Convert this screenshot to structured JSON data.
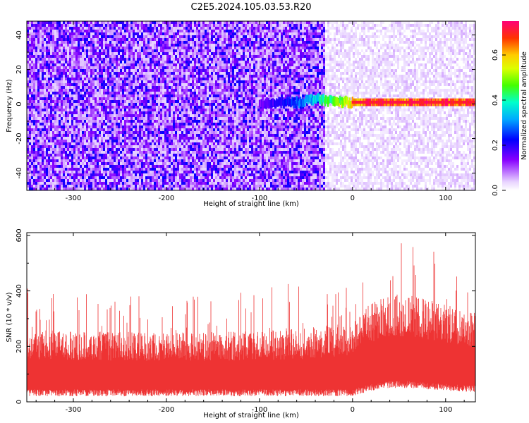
{
  "title": "C2E5.2024.105.03.53.R20",
  "chart_data": [
    {
      "type": "heatmap",
      "xlabel": "Height of straight line (km)",
      "ylabel": "Frequency (Hz)",
      "xlim": [
        -350,
        132
      ],
      "ylim": [
        -50,
        48
      ],
      "x_ticks": [
        -300,
        -200,
        -100,
        0,
        100
      ],
      "x_tick_labels": [
        "-300",
        "-200",
        "-100",
        "0",
        "100"
      ],
      "y_ticks": [
        -40,
        -20,
        0,
        20,
        40
      ],
      "y_tick_labels": [
        "-40",
        "-20",
        "0",
        "20",
        "40"
      ],
      "colorbar": {
        "label": "Normalized spectral amplitude",
        "range": [
          0,
          0.75
        ],
        "ticks": [
          0,
          0.2,
          0.4,
          0.6
        ],
        "tick_labels": [
          "0.0",
          "0.2",
          "0.4",
          "0.6"
        ]
      },
      "regions": [
        {
          "x": [
            -350,
            -30
          ],
          "amplitude_level": 0.12
        },
        {
          "x": [
            -30,
            132
          ],
          "amplitude_level": 0.03
        }
      ],
      "signal_line": {
        "x": [
          -100,
          -60,
          -40,
          -20,
          0,
          20,
          40,
          60,
          80,
          100,
          132
        ],
        "frequency": [
          0,
          1,
          3,
          1.5,
          1,
          1,
          1,
          1,
          1,
          1,
          1
        ],
        "amplitude": [
          0.15,
          0.28,
          0.38,
          0.5,
          0.62,
          0.72,
          0.72,
          0.72,
          0.72,
          0.72,
          0.72
        ]
      }
    },
    {
      "type": "line",
      "color": "#ee3333",
      "xlabel": "Height of straight line (km)",
      "ylabel": "SNR (10 * v/v)",
      "xlim": [
        -350,
        132
      ],
      "ylim": [
        0,
        610
      ],
      "x_ticks": [
        -300,
        -200,
        -100,
        0,
        100
      ],
      "x_tick_labels": [
        "-300",
        "-200",
        "-100",
        "0",
        "100"
      ],
      "y_ticks": [
        0,
        200,
        400,
        600
      ],
      "y_tick_labels": [
        "0",
        "200",
        "400",
        "600"
      ],
      "envelope": {
        "x": [
          -350,
          -300,
          -200,
          -100,
          -50,
          0,
          20,
          40,
          60,
          80,
          100,
          132
        ],
        "low": [
          20,
          20,
          20,
          20,
          20,
          20,
          40,
          50,
          50,
          45,
          40,
          35
        ],
        "typ_max": [
          260,
          255,
          250,
          255,
          265,
          290,
          360,
          390,
          385,
          370,
          350,
          330
        ],
        "peak": [
          420,
          390,
          380,
          430,
          440,
          470,
          560,
          605,
          580,
          560,
          550,
          480
        ]
      }
    }
  ]
}
